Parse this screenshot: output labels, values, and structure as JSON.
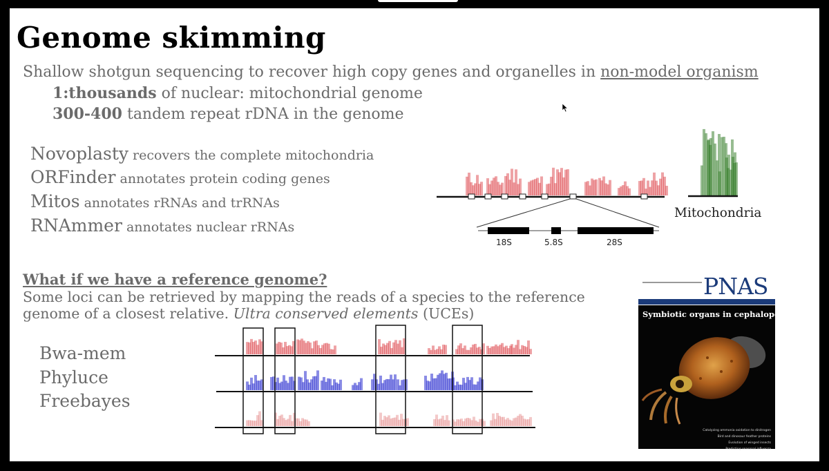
{
  "slide": {
    "title": "Genome skimming",
    "line1_text": "Shallow shotgun sequencing to recover high copy genes and organelles in ",
    "line1_link": "non-model organism",
    "line2_bold": "1:thousands",
    "line2_rest": " of nuclear: mitochondrial genome",
    "line3_bold": "300-400",
    "line3_rest": " tandem repeat rDNA in the genome",
    "tools": [
      {
        "name": "Novoplasty",
        "desc": " recovers the complete mitochondria"
      },
      {
        "name": "ORFinder",
        "desc": " annotates protein coding genes"
      },
      {
        "name": "Mitos",
        "desc": " annotates rRNAs and trRNAs"
      },
      {
        "name": "RNAmmer",
        "desc": " annotates nuclear rRNAs"
      }
    ],
    "rdna_labels": [
      "18S",
      "5.8S",
      "28S"
    ],
    "mito_label": "Mitochondria",
    "question": "What if we have a reference genome?",
    "body_text": "Some loci can be retrieved by mapping the reads of a species to the reference genome of a closest relative. ",
    "body_italic": "Ultra conserved elements",
    "body_tail": " (UCEs)",
    "programs": [
      "Bwa-mem",
      "Phyluce",
      "Freebayes"
    ]
  },
  "pnas_cover": {
    "logo": "PNAS",
    "subtitle": "Symbiotic organs in cephalopods",
    "headlines": [
      "Catalyzing ammonia oxidation to dinitrogen",
      "Bird and dinosaur feather proteins",
      "Evolution of winged insects",
      "Predicting seasonal influenza"
    ]
  },
  "colors": {
    "red": "#d9333a",
    "green": "#2f7a24",
    "blue": "#2a2ed0",
    "gray_text": "#6b6b6b",
    "pnas_blue": "#1b3b7a"
  }
}
